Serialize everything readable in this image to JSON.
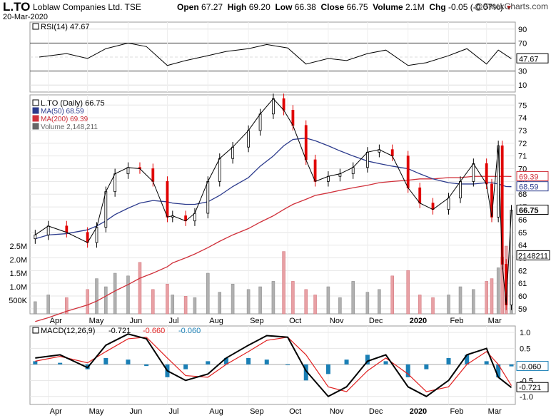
{
  "header": {
    "symbol": "L.TO",
    "company": "Loblaw Companies Ltd.",
    "exchange": "TSE",
    "date": "20-Mar-2020",
    "open_label": "Open",
    "open": "67.27",
    "high_label": "High",
    "high": "69.20",
    "low_label": "Low",
    "low": "66.38",
    "close_label": "Close",
    "close": "66.75",
    "volume_label": "Volume",
    "volume": "2.1M",
    "chg_label": "Chg",
    "chg": "-0.05 (-0.07%)",
    "chg_arrow": "▼",
    "brand": "@StockCharts.com"
  },
  "colors": {
    "price": "#000000",
    "up": "#000000",
    "down": "#e00000",
    "ma50": "#2b3a8c",
    "ma200": "#d0303a",
    "vol_up": "#b0b0b0",
    "vol_down": "#e8a0a4",
    "macd_line": "#000000",
    "macd_signal": "#e02020",
    "macd_hist": "#1a7fb5",
    "rsi_line": "#000000",
    "rsi_high_fill": "#4a8c4a",
    "rsi_low_fill": "#6b8cb0"
  },
  "chart_data": [
    {
      "type": "line",
      "panel": "rsi",
      "legend": "RSI(14) 47.67",
      "yticks": [
        10,
        30,
        50,
        70,
        90
      ],
      "ylim": [
        0,
        100
      ],
      "last_value": "47.67",
      "x": [
        "2019-03-25",
        "2019-04-15",
        "2019-05-01",
        "2019-05-15",
        "2019-06-01",
        "2019-06-15",
        "2019-07-01",
        "2019-07-15",
        "2019-08-01",
        "2019-08-15",
        "2019-09-01",
        "2019-09-15",
        "2019-10-01",
        "2019-10-15",
        "2019-11-01",
        "2019-11-15",
        "2019-12-01",
        "2019-12-15",
        "2020-01-01",
        "2020-01-15",
        "2020-02-01",
        "2020-02-15",
        "2020-03-01",
        "2020-03-10",
        "2020-03-20"
      ],
      "values": [
        50,
        55,
        48,
        62,
        70,
        65,
        38,
        45,
        52,
        58,
        62,
        68,
        63,
        40,
        48,
        45,
        55,
        60,
        38,
        42,
        52,
        62,
        40,
        60,
        47.67
      ]
    },
    {
      "type": "line",
      "panel": "price",
      "legend": [
        "L.TO (Daily) 66.75",
        "MA(50) 68.59",
        "MA(200) 69.39",
        "Volume 2,148,211"
      ],
      "yticks": [
        59,
        60,
        61,
        62,
        63,
        64,
        65,
        66,
        67,
        68,
        69,
        70,
        71,
        72,
        73,
        74,
        75
      ],
      "ylim": [
        58.6,
        75.8
      ],
      "last_labels": {
        "close": "66.75",
        "ma50": "68.59",
        "ma200": "69.39",
        "volume": "2148211"
      },
      "volume_ticks": [
        "500K",
        "1.0M",
        "1.5M",
        "2.0M",
        "2.5M"
      ],
      "volume_tick_values": [
        500000,
        1000000,
        1500000,
        2000000,
        2500000
      ],
      "volume_max": 2500000,
      "x": [
        "2019-03-22",
        "2019-04-01",
        "2019-04-15",
        "2019-05-01",
        "2019-05-08",
        "2019-05-15",
        "2019-05-22",
        "2019-06-01",
        "2019-06-10",
        "2019-06-20",
        "2019-07-01",
        "2019-07-05",
        "2019-07-15",
        "2019-07-22",
        "2019-08-01",
        "2019-08-10",
        "2019-08-20",
        "2019-09-01",
        "2019-09-10",
        "2019-09-20",
        "2019-09-28",
        "2019-10-05",
        "2019-10-15",
        "2019-10-22",
        "2019-11-01",
        "2019-11-10",
        "2019-11-20",
        "2019-12-01",
        "2019-12-10",
        "2019-12-20",
        "2020-01-01",
        "2020-01-10",
        "2020-01-20",
        "2020-02-01",
        "2020-02-10",
        "2020-02-20",
        "2020-03-01",
        "2020-03-05",
        "2020-03-10",
        "2020-03-13",
        "2020-03-16",
        "2020-03-20"
      ],
      "close": [
        64.8,
        65.5,
        65.0,
        64.2,
        65.4,
        68.2,
        69.6,
        70.1,
        70.0,
        69.0,
        66.2,
        66.3,
        65.9,
        66.5,
        69.0,
        70.8,
        71.7,
        73.0,
        74.3,
        75.5,
        74.6,
        73.4,
        70.7,
        69.0,
        69.4,
        69.6,
        70.1,
        71.3,
        71.5,
        71.0,
        68.5,
        67.3,
        66.8,
        67.7,
        69.0,
        70.4,
        68.8,
        66.2,
        71.8,
        62.5,
        59.3,
        66.75
      ],
      "ma50": [
        64.5,
        64.8,
        64.9,
        65.2,
        65.5,
        65.9,
        66.4,
        66.9,
        67.3,
        67.5,
        67.4,
        67.3,
        67.2,
        67.2,
        67.4,
        67.9,
        68.6,
        69.3,
        70.2,
        71.0,
        71.8,
        72.3,
        72.4,
        72.2,
        71.8,
        71.4,
        71.0,
        70.6,
        70.4,
        70.2,
        70.0,
        69.6,
        69.2,
        68.9,
        68.8,
        68.8,
        68.9,
        68.9,
        68.8,
        68.7,
        68.6,
        68.59
      ],
      "ma200": [
        58.0,
        58.3,
        58.8,
        59.3,
        59.6,
        60.0,
        60.4,
        60.9,
        61.4,
        61.8,
        62.3,
        62.6,
        63.0,
        63.3,
        63.8,
        64.3,
        64.8,
        65.3,
        65.8,
        66.3,
        66.8,
        67.2,
        67.6,
        67.9,
        68.1,
        68.3,
        68.5,
        68.7,
        68.9,
        69.0,
        69.1,
        69.2,
        69.2,
        69.3,
        69.3,
        69.4,
        69.4,
        69.4,
        69.4,
        69.4,
        69.4,
        69.39
      ],
      "volume": [
        450000,
        700000,
        600000,
        900000,
        1300000,
        1000000,
        1500000,
        1400000,
        1900000,
        900000,
        1100000,
        700000,
        650000,
        600000,
        1500000,
        800000,
        1100000,
        900000,
        1000000,
        1200000,
        2300000,
        1200000,
        900000,
        700000,
        1000000,
        600000,
        1200000,
        800000,
        900000,
        1400000,
        1600000,
        700000,
        600000,
        700000,
        1000000,
        900000,
        1200000,
        1300000,
        1700000,
        2100000,
        2500000,
        2148211
      ]
    },
    {
      "type": "line",
      "panel": "macd",
      "legend": {
        "title": "MACD(12,26,9)",
        "macd": "-0.721",
        "signal": "-0.660",
        "hist": "-0.060"
      },
      "yticks": [
        -1.0,
        -0.5,
        0.5,
        1.0
      ],
      "ylim": [
        -1.25,
        1.2
      ],
      "last_labels": {
        "hist": "-0.060",
        "macd": "-0.721"
      },
      "x": [
        "2019-03-22",
        "2019-04-10",
        "2019-05-01",
        "2019-05-15",
        "2019-06-01",
        "2019-06-15",
        "2019-07-01",
        "2019-07-15",
        "2019-08-01",
        "2019-08-15",
        "2019-09-01",
        "2019-09-15",
        "2019-10-01",
        "2019-10-15",
        "2019-11-01",
        "2019-11-15",
        "2019-12-01",
        "2019-12-15",
        "2020-01-01",
        "2020-01-15",
        "2020-02-01",
        "2020-02-15",
        "2020-03-01",
        "2020-03-10",
        "2020-03-20"
      ],
      "macd": [
        0.2,
        0.3,
        -0.1,
        0.6,
        0.95,
        0.8,
        -0.2,
        -0.5,
        -0.3,
        0.2,
        0.6,
        0.9,
        0.85,
        -0.2,
        -1.0,
        -0.7,
        0.1,
        0.3,
        -0.7,
        -1.0,
        -0.5,
        0.3,
        0.5,
        -0.4,
        -0.721
      ],
      "signal": [
        0.1,
        0.25,
        0.05,
        0.4,
        0.8,
        0.85,
        0.2,
        -0.35,
        -0.4,
        0.0,
        0.4,
        0.75,
        0.85,
        0.3,
        -0.7,
        -0.85,
        -0.2,
        0.2,
        -0.3,
        -0.85,
        -0.7,
        0.0,
        0.4,
        0.0,
        -0.66
      ]
    }
  ],
  "xaxis": {
    "months": [
      {
        "label": "Apr",
        "date": "2019-04-01",
        "bold": false
      },
      {
        "label": "May",
        "date": "2019-05-01",
        "bold": false
      },
      {
        "label": "Jun",
        "date": "2019-06-01",
        "bold": false
      },
      {
        "label": "Jul",
        "date": "2019-07-01",
        "bold": false
      },
      {
        "label": "Aug",
        "date": "2019-08-01",
        "bold": false
      },
      {
        "label": "Sep",
        "date": "2019-09-01",
        "bold": false
      },
      {
        "label": "Oct",
        "date": "2019-10-01",
        "bold": false
      },
      {
        "label": "Nov",
        "date": "2019-11-01",
        "bold": false
      },
      {
        "label": "Dec",
        "date": "2019-12-01",
        "bold": false
      },
      {
        "label": "2020",
        "date": "2020-01-01",
        "bold": true
      },
      {
        "label": "Feb",
        "date": "2020-02-01",
        "bold": false
      },
      {
        "label": "Mar",
        "date": "2020-03-01",
        "bold": false
      }
    ]
  }
}
